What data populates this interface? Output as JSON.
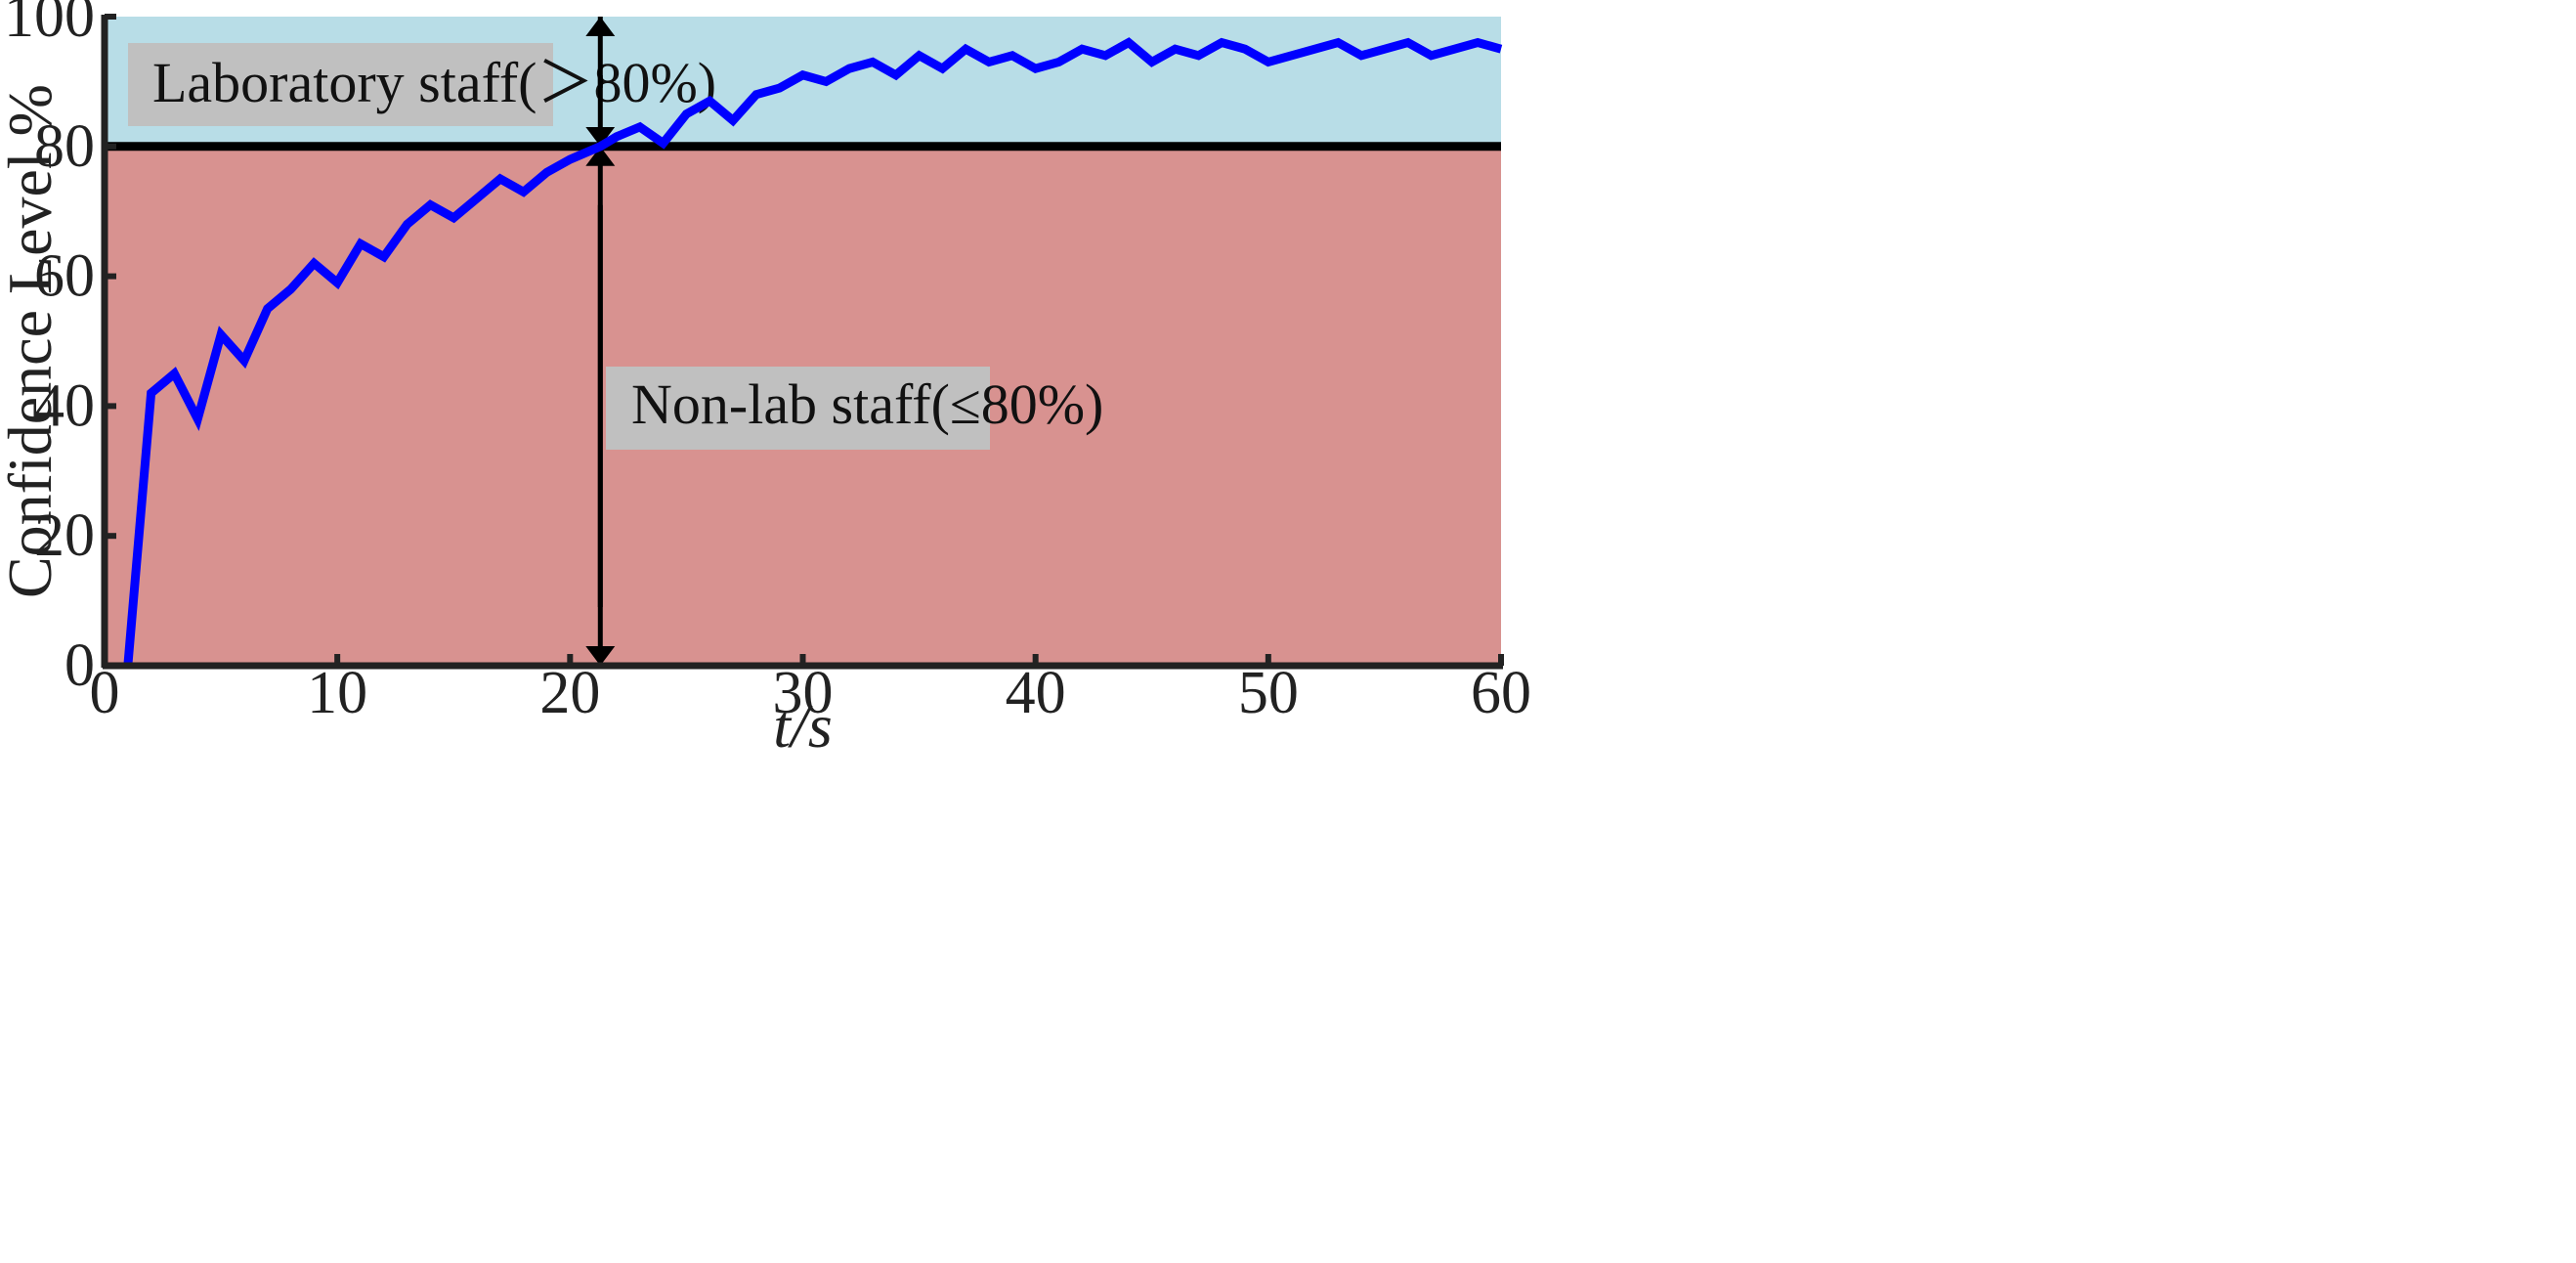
{
  "chart_data": {
    "type": "line",
    "title": "",
    "xlabel": "t/s",
    "ylabel": "Confidence Level %",
    "xlim": [
      0,
      60
    ],
    "ylim": [
      0,
      100
    ],
    "xticks": [
      0,
      10,
      20,
      30,
      40,
      50,
      60
    ],
    "yticks": [
      0,
      20,
      40,
      60,
      80,
      100
    ],
    "threshold": 80,
    "regions": [
      {
        "label": "Laboratory staff(＞80%)",
        "from": 80,
        "to": 100,
        "color": "#b8dde7"
      },
      {
        "label": "Non-lab staff(≤80%)",
        "from": 0,
        "to": 80,
        "color": "#d89290"
      }
    ],
    "marker_x": 21.3,
    "series": [
      {
        "color": "#0000ff",
        "x": [
          1,
          2,
          3,
          4,
          5,
          6,
          7,
          8,
          9,
          10,
          11,
          12,
          13,
          14,
          15,
          16,
          17,
          18,
          19,
          20,
          21.3,
          22,
          23,
          24,
          25,
          26,
          27,
          28,
          29,
          30,
          31,
          32,
          33,
          34,
          35,
          36,
          37,
          38,
          39,
          40,
          41,
          42,
          43,
          44,
          45,
          46,
          47,
          48,
          49,
          50,
          51,
          52,
          53,
          54,
          55,
          56,
          57,
          58,
          59,
          60
        ],
        "y": [
          0,
          42,
          45,
          38,
          51,
          47,
          55,
          58,
          62,
          59,
          65,
          63,
          68,
          71,
          69,
          72,
          75,
          73,
          76,
          78,
          80,
          81.5,
          83,
          80.5,
          85,
          87,
          84,
          88,
          89,
          91,
          90,
          92,
          93,
          91,
          94,
          92,
          95,
          93,
          94,
          92,
          93,
          95,
          94,
          96,
          93,
          95,
          94,
          96,
          95,
          93,
          94,
          95,
          96,
          94,
          95,
          96,
          94,
          95,
          96,
          95
        ]
      }
    ]
  }
}
